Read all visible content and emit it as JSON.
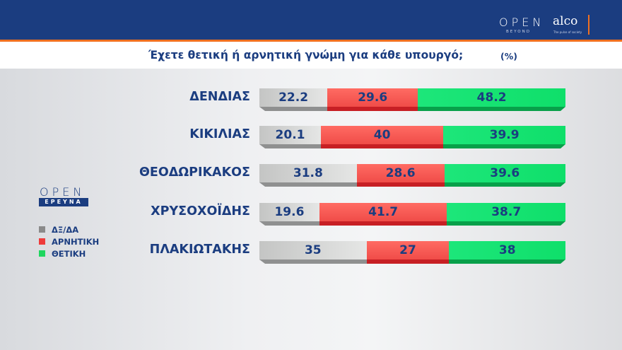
{
  "header": {
    "brand_open": "OPEN",
    "brand_beyond": "BEYOND",
    "brand_alco": "alco",
    "brand_alco_tagline": "The pulse of society",
    "title": "Έχετε θετική ή αρνητική γνώμη για κάθε υπουργό;",
    "unit": "(%)"
  },
  "sidebar": {
    "logo_open": "OPEN",
    "logo_ereuna": "ΕΡΕΥΝΑ",
    "legend": [
      {
        "label": "ΔΞ/ΔΑ",
        "color": "#8a8a8a"
      },
      {
        "label": "ΑΡΝΗΤΙΚΗ",
        "color": "#ee3b3b"
      },
      {
        "label": "ΘΕΤΙΚΗ",
        "color": "#1fd65f"
      }
    ]
  },
  "chart_data": {
    "type": "bar",
    "orientation": "horizontal-stacked",
    "title": "Έχετε θετική ή αρνητική γνώμη για κάθε υπουργό;",
    "unit": "%",
    "categories": [
      "ΔΕΝΔΙΑΣ",
      "ΚΙΚΙΛΙΑΣ",
      "ΘΕΟΔΩΡΙΚΑΚΟΣ",
      "ΧΡΥΣΟΧΟΪΔΗΣ",
      "ΠΛΑΚΙΩΤΑΚΗΣ"
    ],
    "series": [
      {
        "name": "ΔΞ/ΔΑ",
        "color": "#c9cac9",
        "values": [
          22.2,
          20.1,
          31.8,
          19.6,
          35
        ]
      },
      {
        "name": "ΑΡΝΗΤΙΚΗ",
        "color": "#f85a55",
        "values": [
          29.6,
          40,
          28.6,
          41.7,
          27
        ]
      },
      {
        "name": "ΘΕΤΙΚΗ",
        "color": "#14e270",
        "values": [
          48.2,
          39.9,
          39.6,
          38.7,
          38
        ]
      }
    ],
    "legend_position": "left",
    "grid": false,
    "xlim": [
      0,
      100
    ]
  },
  "rows": [
    {
      "name": "ΔΕΝΔΙΑΣ",
      "v": [
        "22.2",
        "29.6",
        "48.2"
      ]
    },
    {
      "name": "ΚΙΚΙΛΙΑΣ",
      "v": [
        "20.1",
        "40",
        "39.9"
      ]
    },
    {
      "name": "ΘΕΟΔΩΡΙΚΑΚΟΣ",
      "v": [
        "31.8",
        "28.6",
        "39.6"
      ]
    },
    {
      "name": "ΧΡΥΣΟΧΟΪΔΗΣ",
      "v": [
        "19.6",
        "41.7",
        "38.7"
      ]
    },
    {
      "name": "ΠΛΑΚΙΩΤΑΚΗΣ",
      "v": [
        "35",
        "27",
        "38"
      ]
    }
  ]
}
